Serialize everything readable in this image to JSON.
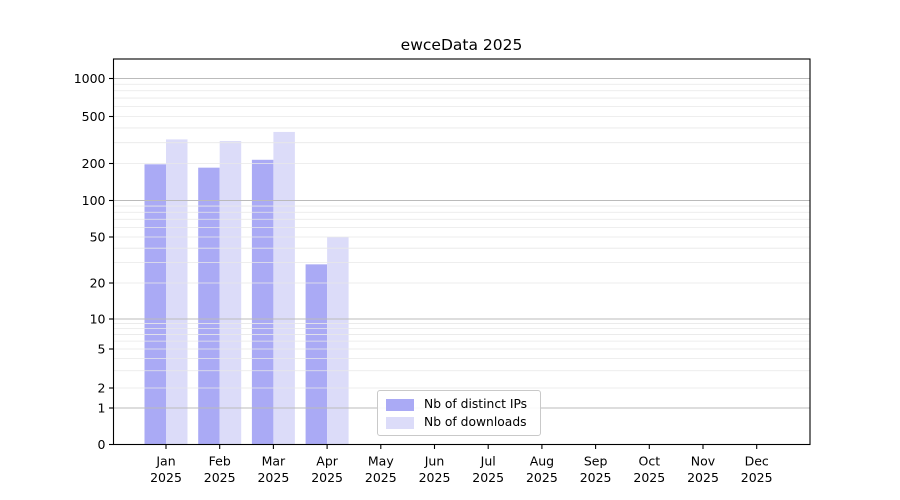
{
  "chart_data": {
    "type": "bar",
    "title": "ewceData 2025",
    "x_tick_line1": [
      "Jan",
      "Feb",
      "Mar",
      "Apr",
      "May",
      "Jun",
      "Jul",
      "Aug",
      "Sep",
      "Oct",
      "Nov",
      "Dec"
    ],
    "x_tick_line2": "2025",
    "y_ticks": [
      0,
      1,
      2,
      5,
      10,
      20,
      50,
      100,
      200,
      500,
      1000
    ],
    "y_scale": "symlog",
    "ylim": [
      0,
      1450
    ],
    "grid": {
      "on": true,
      "major_color": "#bbbbbb",
      "minor_color": "#e8e8e8"
    },
    "series": [
      {
        "name": "Nb of distinct IPs",
        "color": "#aaaaf5",
        "values": [
          197,
          185,
          215,
          29,
          null,
          null,
          null,
          null,
          null,
          null,
          null,
          null
        ]
      },
      {
        "name": "Nb of downloads",
        "color": "#dcdcf9",
        "values": [
          320,
          310,
          370,
          50,
          null,
          null,
          null,
          null,
          null,
          null,
          null,
          null
        ]
      }
    ],
    "legend": {
      "position": "bottom-center"
    }
  }
}
